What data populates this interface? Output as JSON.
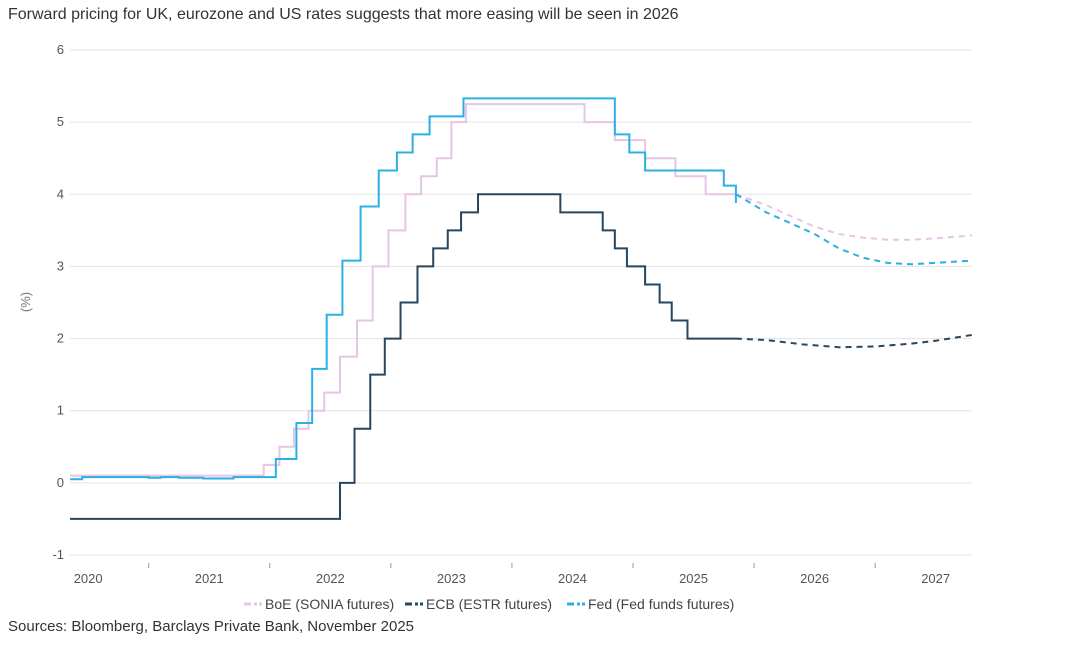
{
  "chart_data": {
    "type": "line",
    "title": "Forward pricing for UK, eurozone and US rates suggests that more easing will be seen in 2026",
    "ylabel": "(%)",
    "ylim": [
      -1,
      6
    ],
    "yticks": [
      -1,
      0,
      1,
      2,
      3,
      4,
      5,
      6
    ],
    "xlim": [
      2019.85,
      2027.3
    ],
    "xticks": [
      "2020",
      "2021",
      "2022",
      "2023",
      "2024",
      "2025",
      "2026",
      "2027"
    ],
    "grid": "horizontal",
    "legend_position": "bottom",
    "source": "Sources: Bloomberg, Barclays Private Bank, November 2025",
    "series": [
      {
        "name": "BoE (SONIA futures)",
        "color": "#e8c4e6",
        "style": "step",
        "x": [
          2019.85,
          2021.45,
          2021.58,
          2021.7,
          2021.82,
          2021.95,
          2022.08,
          2022.22,
          2022.35,
          2022.48,
          2022.62,
          2022.75,
          2022.88,
          2023.0,
          2023.12,
          2023.25,
          2023.6,
          2024.1,
          2024.35,
          2024.6,
          2024.85,
          2025.1,
          2025.35
        ],
        "values": [
          0.1,
          0.25,
          0.5,
          0.75,
          1.0,
          1.25,
          1.75,
          2.25,
          3.0,
          3.5,
          4.0,
          4.25,
          4.5,
          5.0,
          5.25,
          5.25,
          5.25,
          5.0,
          4.75,
          4.5,
          4.25,
          4.0,
          4.0
        ]
      },
      {
        "name": "BoE (SONIA futures) forward",
        "color": "#e8c4e6",
        "style": "dashed",
        "x": [
          2025.35,
          2025.6,
          2025.8,
          2026.0,
          2026.2,
          2026.4,
          2026.6,
          2026.8,
          2027.0,
          2027.3
        ],
        "values": [
          4.0,
          3.85,
          3.7,
          3.55,
          3.45,
          3.4,
          3.37,
          3.37,
          3.39,
          3.43
        ]
      },
      {
        "name": "ECB (ESTR futures)",
        "color": "#27465f",
        "style": "step",
        "x": [
          2019.85,
          2022.08,
          2022.2,
          2022.33,
          2022.45,
          2022.58,
          2022.72,
          2022.85,
          2022.97,
          2023.08,
          2023.22,
          2023.9,
          2024.25,
          2024.35,
          2024.45,
          2024.6,
          2024.72,
          2024.82,
          2024.95,
          2025.35
        ],
        "values": [
          -0.5,
          0.0,
          0.75,
          1.5,
          2.0,
          2.5,
          3.0,
          3.25,
          3.5,
          3.75,
          4.0,
          3.75,
          3.5,
          3.25,
          3.0,
          2.75,
          2.5,
          2.25,
          2.0,
          2.0
        ]
      },
      {
        "name": "ECB (ESTR futures) forward",
        "color": "#27465f",
        "style": "dashed",
        "x": [
          2025.35,
          2025.6,
          2025.9,
          2026.2,
          2026.5,
          2026.8,
          2027.0,
          2027.3
        ],
        "values": [
          2.0,
          1.98,
          1.92,
          1.88,
          1.89,
          1.93,
          1.97,
          2.05
        ]
      },
      {
        "name": "Fed (Fed funds futures)",
        "color": "#2ab0e4",
        "style": "step",
        "x": [
          2019.85,
          2019.95,
          2020.2,
          2020.5,
          2020.6,
          2020.75,
          2020.95,
          2021.2,
          2021.55,
          2021.72,
          2021.85,
          2021.97,
          2022.1,
          2022.25,
          2022.4,
          2022.55,
          2022.68,
          2022.82,
          2022.95,
          2023.1,
          2023.22,
          2024.22,
          2024.35,
          2024.47,
          2024.6,
          2025.25,
          2025.35
        ],
        "values": [
          0.05,
          0.08,
          0.08,
          0.07,
          0.08,
          0.07,
          0.06,
          0.08,
          0.33,
          0.83,
          1.58,
          2.33,
          3.08,
          3.83,
          4.33,
          4.58,
          4.83,
          5.08,
          5.08,
          5.33,
          5.33,
          5.33,
          4.83,
          4.58,
          4.33,
          4.12,
          3.88
        ]
      },
      {
        "name": "Fed (Fed funds futures) forward",
        "color": "#2ab0e4",
        "style": "dashed",
        "x": [
          2025.35,
          2025.6,
          2025.8,
          2026.0,
          2026.2,
          2026.4,
          2026.6,
          2026.8,
          2027.0,
          2027.3
        ],
        "values": [
          4.0,
          3.75,
          3.6,
          3.45,
          3.25,
          3.12,
          3.05,
          3.03,
          3.05,
          3.08
        ]
      }
    ],
    "legend": [
      {
        "label": "BoE (SONIA futures)",
        "color": "#e8c4e6"
      },
      {
        "label": "ECB (ESTR futures)",
        "color": "#27465f"
      },
      {
        "label": "Fed (Fed funds futures)",
        "color": "#2ab0e4"
      }
    ]
  }
}
